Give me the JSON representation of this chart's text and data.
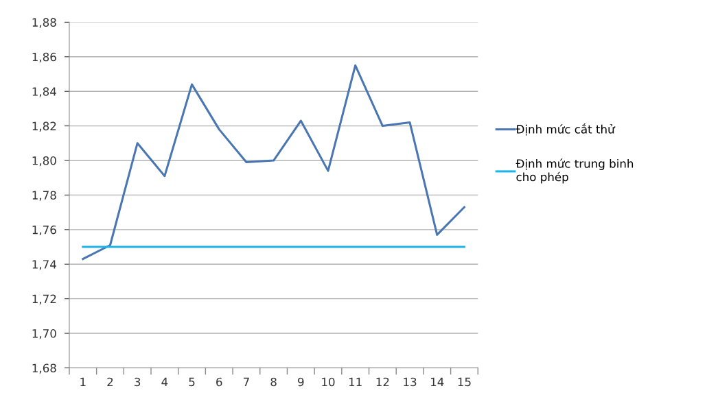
{
  "chart_data": {
    "type": "line",
    "categories": [
      "1",
      "2",
      "3",
      "4",
      "5",
      "6",
      "7",
      "8",
      "9",
      "10",
      "11",
      "12",
      "13",
      "14",
      "15"
    ],
    "series": [
      {
        "name": "Định mức cắt thử",
        "color": "#4a76b2",
        "values": [
          1.743,
          1.751,
          1.81,
          1.791,
          1.844,
          1.818,
          1.799,
          1.8,
          1.823,
          1.794,
          1.855,
          1.82,
          1.822,
          1.757,
          1.773
        ]
      },
      {
        "name": "Định mức trung binh cho phép",
        "color": "#1fb3e8",
        "values": [
          1.75,
          1.75,
          1.75,
          1.75,
          1.75,
          1.75,
          1.75,
          1.75,
          1.75,
          1.75,
          1.75,
          1.75,
          1.75,
          1.75,
          1.75
        ]
      }
    ],
    "ylim": [
      1.68,
      1.88
    ],
    "yticks": [
      {
        "value": 1.68,
        "label": "1,68"
      },
      {
        "value": 1.7,
        "label": "1,70"
      },
      {
        "value": 1.72,
        "label": "1,72"
      },
      {
        "value": 1.74,
        "label": "1,74"
      },
      {
        "value": 1.76,
        "label": "1,76"
      },
      {
        "value": 1.78,
        "label": "1,78"
      },
      {
        "value": 1.8,
        "label": "1,80"
      },
      {
        "value": 1.82,
        "label": "1,82"
      },
      {
        "value": 1.84,
        "label": "1,84"
      },
      {
        "value": 1.86,
        "label": "1,86"
      },
      {
        "value": 1.88,
        "label": "1,88"
      }
    ],
    "grid": "y",
    "legend": "right",
    "marker": "none",
    "line_style": "solid"
  }
}
